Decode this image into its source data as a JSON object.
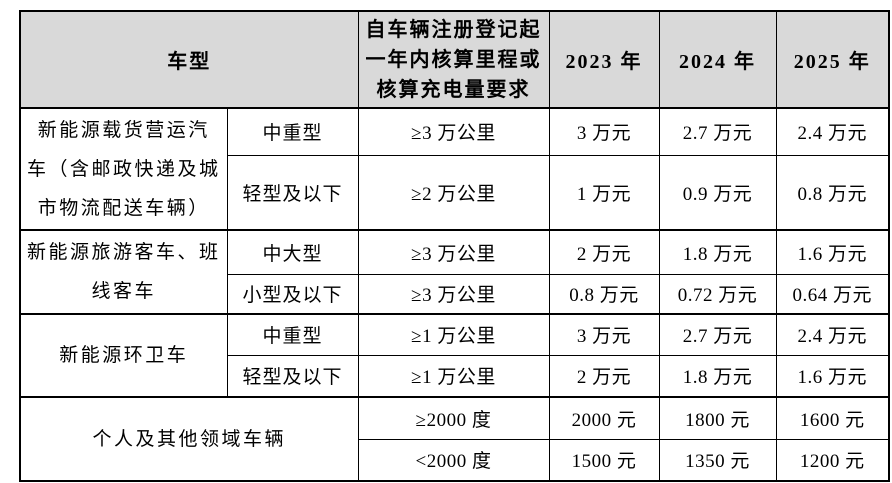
{
  "colors": {
    "header_background": "#d9d9d9",
    "border": "#000000",
    "text": "#000000",
    "body_background": "#ffffff"
  },
  "table": {
    "header": {
      "vehicle_type": "车型",
      "requirement": "自车辆注册登记起\n一年内核算里程或\n核算充电量要求",
      "years": [
        "2023 年",
        "2024 年",
        "2025 年"
      ]
    },
    "groups": [
      {
        "category": "新能源载货营运汽\n车（含邮政快递及城\n市物流配送车辆）",
        "rows": [
          {
            "subtype": "中重型",
            "requirement": "≥3 万公里",
            "values": [
              "3 万元",
              "2.7 万元",
              "2.4 万元"
            ]
          },
          {
            "subtype": "轻型及以下",
            "requirement": "≥2 万公里",
            "values": [
              "1 万元",
              "0.9 万元",
              "0.8 万元"
            ]
          }
        ]
      },
      {
        "category": "新能源旅游客车、班\n线客车",
        "rows": [
          {
            "subtype": "中大型",
            "requirement": "≥3 万公里",
            "values": [
              "2 万元",
              "1.8 万元",
              "1.6 万元"
            ]
          },
          {
            "subtype": "小型及以下",
            "requirement": "≥3 万公里",
            "values": [
              "0.8 万元",
              "0.72 万元",
              "0.64 万元"
            ]
          }
        ]
      },
      {
        "category": "新能源环卫车",
        "rows": [
          {
            "subtype": "中重型",
            "requirement": "≥1 万公里",
            "values": [
              "3 万元",
              "2.7 万元",
              "2.4 万元"
            ]
          },
          {
            "subtype": "轻型及以下",
            "requirement": "≥1 万公里",
            "values": [
              "2 万元",
              "1.8 万元",
              "1.6 万元"
            ]
          }
        ]
      },
      {
        "category": "个人及其他领域车辆",
        "rows": [
          {
            "requirement": "≥2000 度",
            "values": [
              "2000 元",
              "1800 元",
              "1600 元"
            ]
          },
          {
            "requirement": "<2000 度",
            "values": [
              "1500 元",
              "1350 元",
              "1200 元"
            ]
          }
        ]
      }
    ]
  }
}
